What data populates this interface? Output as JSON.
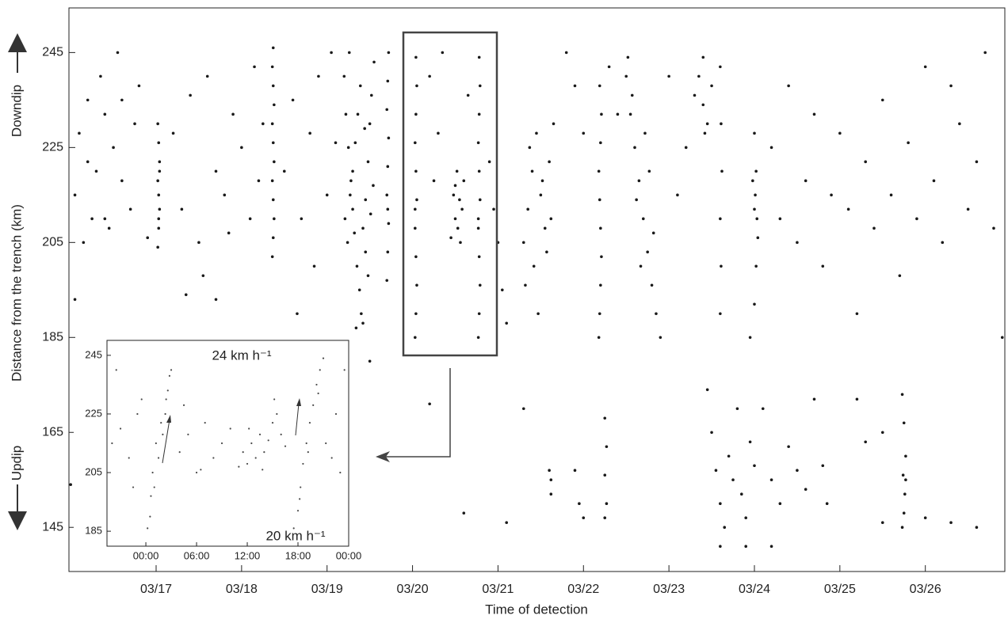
{
  "chart_data": [
    {
      "type": "scatter",
      "xlabel": "Time of detection",
      "ylabel": "Distance from the trench (km)",
      "annotations": [
        "Downdip",
        "Updip"
      ],
      "xlim": [
        15.98,
        26.93
      ],
      "ylim": [
        135.7,
        254.4
      ],
      "xticks": [
        {
          "value": 17,
          "label": "03/17"
        },
        {
          "value": 18,
          "label": "03/18"
        },
        {
          "value": 19,
          "label": "03/19"
        },
        {
          "value": 20,
          "label": "03/20"
        },
        {
          "value": 21,
          "label": "03/21"
        },
        {
          "value": 22,
          "label": "03/22"
        },
        {
          "value": 23,
          "label": "03/23"
        },
        {
          "value": 24,
          "label": "03/24"
        },
        {
          "value": 25,
          "label": "03/25"
        },
        {
          "value": 26,
          "label": "03/26"
        }
      ],
      "yticks": [
        145,
        165,
        185,
        205,
        225,
        245
      ],
      "color": "#1a1a1a",
      "x": [
        16.05,
        16.1,
        16.15,
        16.2,
        16.25,
        16.3,
        16.35,
        16.4,
        16.45,
        16.5,
        16.55,
        16.6,
        16.7,
        16.75,
        16.8,
        16.9,
        16.05,
        16.2,
        16.4,
        16.6,
        17.02,
        17.03,
        17.04,
        17.03,
        17.02,
        17.04,
        17.03,
        17.02,
        17.03,
        17.04,
        17.2,
        17.3,
        17.4,
        17.5,
        17.6,
        17.7,
        17.8,
        17.9,
        18.0,
        18.1,
        18.2,
        18.25,
        17.35,
        17.55,
        17.85,
        18.15,
        18.36,
        18.37,
        18.38,
        18.37,
        18.36,
        18.38,
        18.37,
        18.36,
        18.38,
        18.37,
        18.36,
        18.37,
        18.5,
        18.6,
        18.7,
        18.8,
        18.9,
        19.0,
        19.1,
        18.65,
        18.85,
        19.05,
        19.2,
        19.22,
        19.25,
        19.28,
        19.3,
        19.32,
        19.35,
        19.38,
        19.4,
        19.42,
        19.45,
        19.48,
        19.5,
        19.52,
        19.55,
        19.21,
        19.24,
        19.27,
        19.3,
        19.33,
        19.36,
        19.39,
        19.42,
        19.45,
        19.48,
        19.51,
        19.54,
        19.26,
        19.34,
        19.44,
        19.7,
        19.71,
        19.72,
        19.7,
        19.71,
        19.72,
        19.7,
        19.71,
        19.72,
        19.71,
        20.03,
        20.04,
        20.05,
        20.04,
        20.03,
        20.05,
        20.04,
        20.03,
        20.04,
        20.05,
        20.04,
        20.03,
        20.45,
        20.5,
        20.55,
        20.6,
        20.48,
        20.53,
        20.58,
        20.52,
        20.56,
        20.5,
        20.77,
        20.78,
        20.79,
        20.78,
        20.77,
        20.79,
        20.78,
        20.77,
        20.78,
        20.79,
        20.78,
        20.77,
        20.2,
        20.3,
        20.35,
        20.65,
        20.9,
        21.0,
        21.05,
        21.1,
        20.25,
        20.95,
        21.3,
        21.35,
        21.4,
        21.45,
        21.5,
        21.55,
        21.6,
        21.65,
        21.32,
        21.42,
        21.52,
        21.62,
        21.37,
        21.47,
        21.57,
        22.18,
        22.19,
        22.2,
        22.21,
        22.2,
        22.19,
        22.18,
        22.2,
        22.21,
        22.19,
        22.5,
        22.55,
        22.6,
        22.65,
        22.7,
        22.75,
        22.8,
        22.85,
        22.9,
        22.52,
        22.62,
        22.72,
        22.82,
        22.57,
        22.67,
        22.77,
        23.3,
        23.35,
        23.4,
        23.45,
        23.5,
        23.4,
        23.42,
        23.6,
        23.61,
        23.6,
        23.62,
        23.61,
        23.6,
        23.95,
        24.0,
        24.02,
        24.04,
        24.0,
        23.98,
        24.03,
        24.01,
        24.02,
        24.0,
        24.2,
        24.3,
        24.4,
        24.5,
        24.6,
        24.7,
        24.8,
        24.9,
        25.0,
        25.1,
        25.2,
        25.3,
        25.4,
        25.5,
        25.6,
        25.7,
        25.8,
        25.9,
        26.0,
        26.1,
        26.2,
        26.3,
        26.4,
        26.5,
        26.6,
        26.7,
        26.8,
        26.9,
        21.8,
        21.9,
        22.0,
        22.3,
        22.4,
        23.0,
        23.1,
        23.2,
        16.0,
        16.3,
        16.5,
        17.7,
        18.6,
        19.2,
        19.5,
        20.2,
        20.6,
        21.1,
        21.3,
        21.6,
        21.62,
        21.62,
        21.9,
        21.95,
        22.0,
        22.25,
        22.27,
        22.25,
        22.27,
        22.25,
        23.45,
        23.5,
        23.55,
        23.6,
        23.65,
        23.7,
        23.75,
        23.8,
        23.85,
        23.9,
        23.95,
        24.0,
        24.1,
        24.2,
        24.3,
        24.4,
        24.5,
        24.6,
        24.7,
        24.8,
        24.85,
        23.6,
        23.9,
        24.2,
        25.73,
        25.75,
        25.77,
        25.74,
        25.76,
        25.75,
        25.73,
        25.77,
        25.5,
        26.0,
        26.3,
        25.2,
        25.3,
        25.5,
        26.6
      ],
      "values": [
        215,
        228,
        205,
        235,
        210,
        220,
        240,
        232,
        208,
        225,
        245,
        218,
        212,
        230,
        238,
        206,
        193,
        222,
        210,
        235,
        204,
        208,
        212,
        215,
        218,
        222,
        226,
        230,
        210,
        220,
        228,
        212,
        236,
        205,
        240,
        220,
        215,
        232,
        225,
        210,
        218,
        230,
        194,
        198,
        207,
        242,
        202,
        206,
        210,
        214,
        218,
        222,
        226,
        230,
        234,
        238,
        242,
        246,
        220,
        235,
        210,
        228,
        240,
        215,
        226,
        190,
        200,
        245,
        240,
        232,
        225,
        218,
        212,
        207,
        200,
        195,
        190,
        188,
        214,
        222,
        230,
        236,
        243,
        210,
        205,
        215,
        220,
        226,
        232,
        238,
        208,
        203,
        198,
        211,
        217,
        245,
        187,
        229,
        197,
        203,
        209,
        215,
        221,
        227,
        233,
        239,
        245,
        212,
        185,
        190,
        196,
        202,
        208,
        214,
        220,
        226,
        232,
        238,
        244,
        212,
        206,
        210,
        214,
        218,
        215,
        208,
        212,
        220,
        205,
        217,
        185,
        190,
        196,
        202,
        208,
        214,
        220,
        226,
        232,
        238,
        244,
        210,
        240,
        228,
        245,
        236,
        222,
        205,
        195,
        188,
        218,
        212,
        205,
        212,
        220,
        228,
        215,
        208,
        222,
        230,
        196,
        200,
        218,
        210,
        225,
        190,
        203,
        185,
        190,
        196,
        202,
        208,
        214,
        220,
        226,
        232,
        238,
        240,
        232,
        225,
        218,
        210,
        203,
        196,
        190,
        185,
        244,
        214,
        228,
        207,
        236,
        200,
        220,
        236,
        240,
        244,
        230,
        238,
        234,
        228,
        190,
        200,
        210,
        220,
        230,
        242,
        185,
        192,
        200,
        206,
        212,
        218,
        210,
        215,
        220,
        228,
        225,
        210,
        238,
        205,
        218,
        232,
        200,
        215,
        228,
        212,
        190,
        222,
        208,
        235,
        215,
        198,
        226,
        210,
        242,
        218,
        205,
        238,
        230,
        212,
        222,
        245,
        208,
        185,
        245,
        238,
        228,
        242,
        232,
        240,
        215,
        225,
        154,
        160,
        157,
        193,
        170,
        162,
        180,
        171,
        148,
        146,
        170,
        157,
        155,
        152,
        157,
        150,
        147,
        168,
        162,
        156,
        150,
        147,
        174,
        165,
        157,
        150,
        145,
        160,
        155,
        170,
        152,
        147,
        163,
        158,
        170,
        155,
        150,
        162,
        157,
        153,
        172,
        158,
        150,
        141,
        141,
        141,
        173,
        167,
        160,
        156,
        152,
        148,
        145,
        155,
        165,
        147,
        146,
        172,
        163,
        146,
        145
      ]
    },
    {
      "type": "scatter",
      "annotations": [
        "24 km h⁻¹",
        "20 km h⁻¹"
      ],
      "xlim": [
        -4.6,
        24
      ],
      "ylim": [
        179.9,
        250.1
      ],
      "xticks": [
        {
          "value": 0,
          "label": "00:00"
        },
        {
          "value": 6,
          "label": "06:00"
        },
        {
          "value": 12,
          "label": "12:00"
        },
        {
          "value": 18,
          "label": "18:00"
        },
        {
          "value": 24,
          "label": "00:00"
        }
      ],
      "yticks": [
        185,
        205,
        225,
        245
      ],
      "color": "#4a4a4a",
      "x": [
        0.5,
        1.0,
        1.5,
        2.0,
        2.3,
        2.6,
        3.0,
        0.8,
        1.2,
        1.8,
        2.4,
        2.8,
        0.2,
        0.6,
        -4,
        -3,
        -2,
        -1,
        -0.5,
        4,
        5,
        6,
        7,
        8,
        9,
        10,
        -3.5,
        -1.5,
        4.5,
        6.5,
        11,
        11.5,
        12,
        12.5,
        13,
        13.5,
        14,
        14.5,
        15,
        15.5,
        16,
        16.5,
        12.2,
        13.8,
        15.2,
        17.5,
        18,
        18.3,
        18.6,
        19,
        19.4,
        19.8,
        20.2,
        20.6,
        21,
        18.2,
        19.2,
        20.4,
        21.3,
        22,
        22.5,
        23,
        23.5
      ],
      "values": [
        190,
        200,
        210,
        218,
        225,
        233,
        240,
        205,
        215,
        222,
        230,
        238,
        186,
        197,
        215,
        220,
        210,
        225,
        230,
        212,
        218,
        205,
        222,
        210,
        215,
        220,
        240,
        200,
        228,
        206,
        207,
        212,
        208,
        215,
        210,
        218,
        212,
        216,
        222,
        225,
        218,
        214,
        220,
        206,
        230,
        186,
        192,
        200,
        208,
        215,
        222,
        228,
        235,
        240,
        244,
        196,
        212,
        232,
        215,
        210,
        225,
        205,
        240
      ]
    }
  ]
}
